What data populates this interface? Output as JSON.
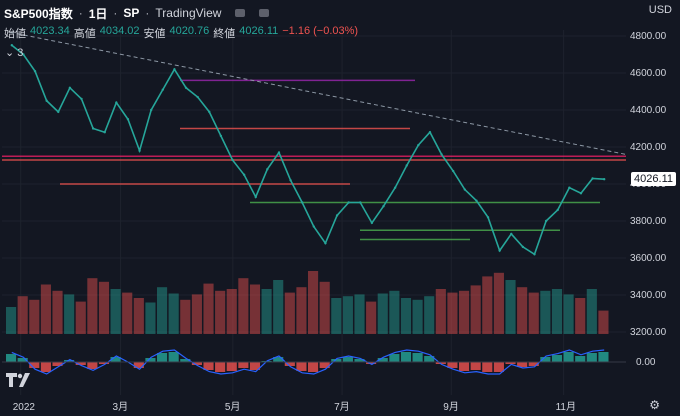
{
  "header": {
    "title": "S&P500指数",
    "interval": "1日",
    "exchange": "SP",
    "source": "TradingView",
    "separator": "·"
  },
  "ohlc": {
    "open_label": "始値",
    "open": "4023.34",
    "high_label": "高値",
    "high": "4034.02",
    "low_label": "安値",
    "low": "4020.76",
    "close_label": "終値",
    "close": "4026.11",
    "change": "−1.16 (−0.03%)"
  },
  "indicators": {
    "toggle_icon": "chevron-down-icon",
    "count": "3"
  },
  "currency": "USD",
  "current_price_label": "4026.11",
  "settings_icon": "gear-icon",
  "logo_text": "TV",
  "chart_data": {
    "type": "line",
    "y_ticks": [
      "4800.00",
      "4600.00",
      "4400.00",
      "4200.00",
      "4000.00",
      "3800.00",
      "3600.00",
      "3400.00",
      "3200.00"
    ],
    "y_range": [
      3200,
      4800
    ],
    "x_ticks": [
      "2022",
      "3月",
      "5月",
      "7月",
      "9月",
      "11月"
    ],
    "osc_ticks": [
      "0.00"
    ],
    "series": [
      {
        "values": [
          4750,
          4700,
          4610,
          4450,
          4390,
          4520,
          4460,
          4300,
          4280,
          4440,
          4350,
          4180,
          4400,
          4510,
          4620,
          4520,
          4470,
          4390,
          4260,
          4130,
          4050,
          3930,
          4080,
          4170,
          4020,
          3900,
          3770,
          3680,
          3830,
          3900,
          3900,
          3790,
          3880,
          3980,
          4100,
          4210,
          4280,
          4160,
          4070,
          3970,
          3910,
          3820,
          3640,
          3730,
          3660,
          3620,
          3800,
          3860,
          3980,
          3950,
          4030,
          4026
        ]
      }
    ],
    "volume": [
      30,
      42,
      38,
      55,
      48,
      44,
      36,
      62,
      58,
      50,
      46,
      40,
      35,
      52,
      45,
      38,
      44,
      56,
      48,
      50,
      62,
      55,
      50,
      60,
      46,
      52,
      70,
      58,
      40,
      42,
      44,
      36,
      45,
      48,
      40,
      38,
      42,
      50,
      46,
      48,
      54,
      64,
      68,
      60,
      52,
      46,
      48,
      50,
      44,
      40,
      50,
      26
    ],
    "macd": [
      0.8,
      0.4,
      -0.6,
      -1,
      -0.4,
      0.2,
      -0.3,
      -0.7,
      -0.2,
      0.5,
      0,
      -0.6,
      0.4,
      0.9,
      1,
      0.3,
      -0.3,
      -0.8,
      -1,
      -0.9,
      -0.6,
      -0.8,
      0.1,
      0.5,
      -0.4,
      -0.9,
      -1,
      -0.6,
      0.3,
      0.5,
      0.3,
      -0.2,
      0.4,
      0.8,
      1,
      0.9,
      0.6,
      -0.2,
      -0.6,
      -0.9,
      -0.8,
      -1,
      -1,
      -0.2,
      -0.5,
      -0.4,
      0.5,
      0.7,
      1,
      0.6,
      0.9,
      1
    ]
  }
}
